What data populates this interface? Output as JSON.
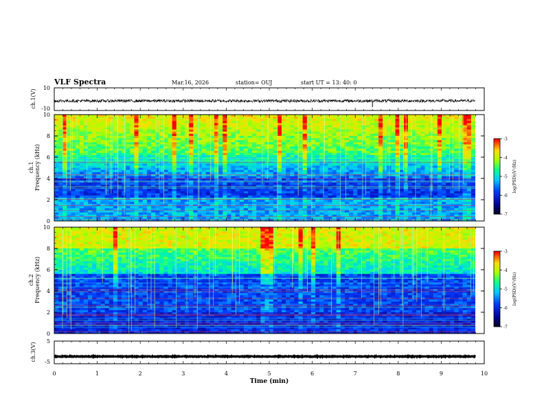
{
  "header": {
    "title": "VLF Spectra",
    "date": "Mar.16, 2026",
    "station": "station= OUJ",
    "start_ut": "start  UT  =   13: 40: 0"
  },
  "chart_data": [
    {
      "type": "line",
      "name": "ch1-waveform",
      "ylabel": "ch.1(V)",
      "ylim": [
        -10,
        10
      ],
      "ytick_labels": [
        "10",
        "-10"
      ],
      "baseline_v": -1.5,
      "spike_time_min": 7.4
    },
    {
      "type": "heatmap",
      "name": "ch1-spectrogram",
      "ylabel_line1": "ch.1",
      "ylabel_line2": "Frequency (kHz)",
      "ylim": [
        0,
        10
      ],
      "ytick_labels": [
        "0",
        "2",
        "4",
        "6",
        "8",
        "10"
      ],
      "colorbar_label": "log(PSD)(V²/Hz)",
      "colorbar_range": [
        -7,
        -3
      ],
      "colorbar_ticks": [
        "-3",
        "-4",
        "-5",
        "-6",
        "-7"
      ]
    },
    {
      "type": "heatmap",
      "name": "ch2-spectrogram",
      "ylabel_line1": "ch.2",
      "ylabel_line2": "Frequency (kHz)",
      "ylim": [
        0,
        10
      ],
      "ytick_labels": [
        "0",
        "2",
        "4",
        "6",
        "8",
        "10"
      ],
      "colorbar_label": "log(PSD)(V²/Hz)",
      "colorbar_range": [
        -7,
        -3
      ],
      "colorbar_ticks": [
        "-3",
        "-4",
        "-5",
        "-6",
        "-7"
      ]
    },
    {
      "type": "line",
      "name": "ch3-waveform",
      "ylabel": "ch.3(V)",
      "ylim": [
        -5,
        5
      ],
      "ytick_labels": [
        "5",
        "-5"
      ],
      "baseline_v": -1.8
    }
  ],
  "xaxis": {
    "label": "Time (min)",
    "xlim": [
      0,
      10
    ],
    "tick_labels": [
      "0",
      "1",
      "2",
      "3",
      "4",
      "5",
      "6",
      "7",
      "8",
      "9",
      "10"
    ]
  }
}
